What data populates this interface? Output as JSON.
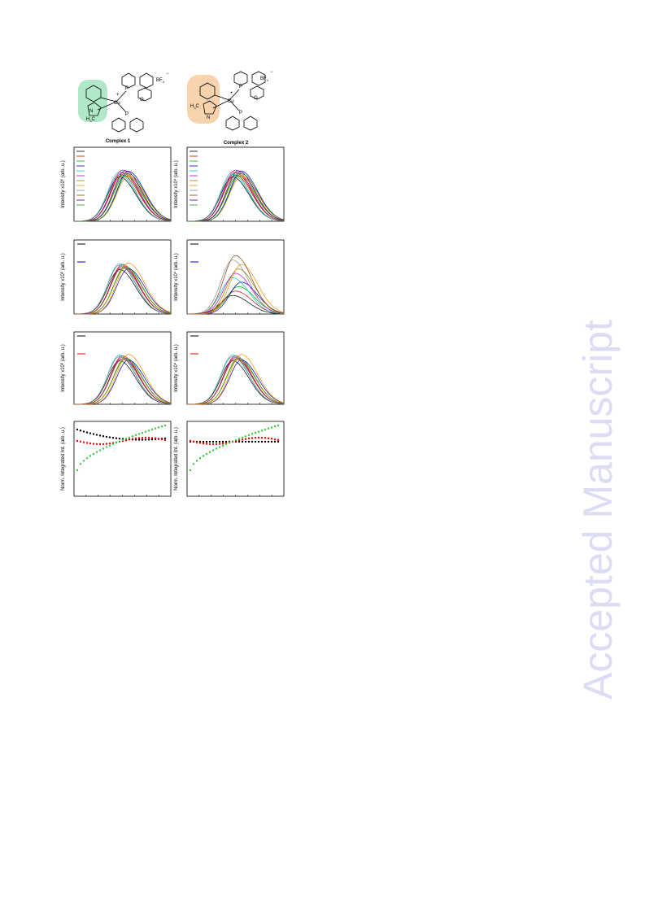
{
  "figure": {
    "columns": [
      "Complex 1",
      "Complex 2"
    ],
    "molecule_labels": {
      "counterion": "BF",
      "counterion_sub": "4",
      "metal": "Cu",
      "phosphorus": "P",
      "oxygen": "O",
      "nitrogen": "N",
      "methyl": "H",
      "methyl_sub": "3",
      "methyl_c": "C",
      "charge": "+",
      "anion_charge": "−"
    },
    "ylabels": {
      "intensity_prefix": "Intensity x10",
      "intensity_suffix": " (arb. u.)",
      "exp_left": "5",
      "exp_right": "4",
      "normalized": "Norm. Integrated Int. (arb. u.)"
    }
  },
  "watermark": "Accepted Manuscript"
}
